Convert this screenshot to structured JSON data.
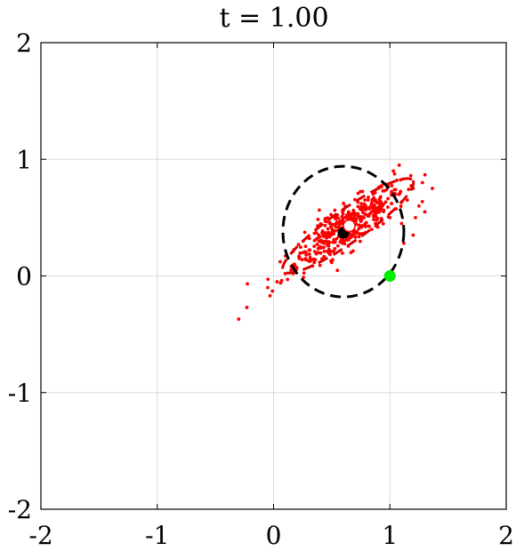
{
  "chart_data": {
    "type": "scatter",
    "title": "t = 1.00",
    "xlabel": "",
    "ylabel": "",
    "xlim": [
      -2,
      2
    ],
    "ylim": [
      -2,
      2
    ],
    "xticks": [
      -2,
      -1,
      0,
      1,
      2
    ],
    "yticks": [
      -2,
      -1,
      0,
      1,
      2
    ],
    "xtick_labels": [
      "-2",
      "-1",
      "0",
      "1",
      "2"
    ],
    "ytick_labels": [
      "-2",
      "-1",
      "0",
      "1",
      "2"
    ],
    "grid": true,
    "legend": "none",
    "colors": {
      "samples": "#ff0000",
      "red_ellipse": "#dd0000",
      "black_ellipse": "#000000",
      "green_marker": "#00ee00"
    },
    "series": [
      {
        "kind": "scatter",
        "role": "samples",
        "count": 460,
        "points": [
          [
            -0.3,
            -0.37
          ],
          [
            -0.23,
            -0.27
          ],
          [
            -0.05,
            -0.1
          ],
          [
            -0.03,
            -0.17
          ],
          [
            -0.01,
            -0.13
          ],
          [
            0.03,
            -0.05
          ],
          [
            0.07,
            -0.04
          ],
          [
            0.1,
            0.02
          ],
          [
            0.12,
            -0.03
          ],
          [
            0.15,
            0.05
          ],
          [
            0.18,
            0.1
          ],
          [
            0.2,
            0.07
          ],
          [
            0.22,
            0.15
          ],
          [
            0.25,
            0.2
          ],
          [
            0.28,
            0.18
          ],
          [
            1.0,
            0.5
          ],
          [
            1.05,
            0.7
          ],
          [
            1.1,
            0.45
          ],
          [
            1.15,
            0.65
          ],
          [
            1.2,
            0.75
          ],
          [
            1.25,
            0.6
          ],
          [
            1.28,
            0.8
          ],
          [
            1.3,
            0.55
          ],
          [
            1.03,
            0.9
          ],
          [
            1.08,
            0.95
          ],
          [
            1.2,
            0.35
          ],
          [
            1.12,
            0.28
          ],
          [
            1.06,
            0.82
          ],
          [
            1.18,
            0.86
          ],
          [
            1.22,
            0.5
          ]
        ]
      },
      {
        "kind": "ellipse",
        "role": "sample covariance (red dashed)",
        "center": [
          0.64,
          0.43
        ],
        "semi_axes": [
          0.68,
          0.14
        ],
        "angle_deg": 35
      },
      {
        "kind": "ellipse",
        "role": "reference (black dashed)",
        "center": [
          0.6,
          0.38
        ],
        "semi_axes": [
          0.52,
          0.56
        ],
        "angle_deg": 0
      },
      {
        "kind": "marker",
        "role": "reference mean (black dot)",
        "x": 0.6,
        "y": 0.37
      },
      {
        "kind": "marker",
        "role": "sample mean (white dot)",
        "x": 0.65,
        "y": 0.43
      },
      {
        "kind": "marker",
        "role": "target (green dot)",
        "x": 1.0,
        "y": 0.0
      }
    ]
  }
}
